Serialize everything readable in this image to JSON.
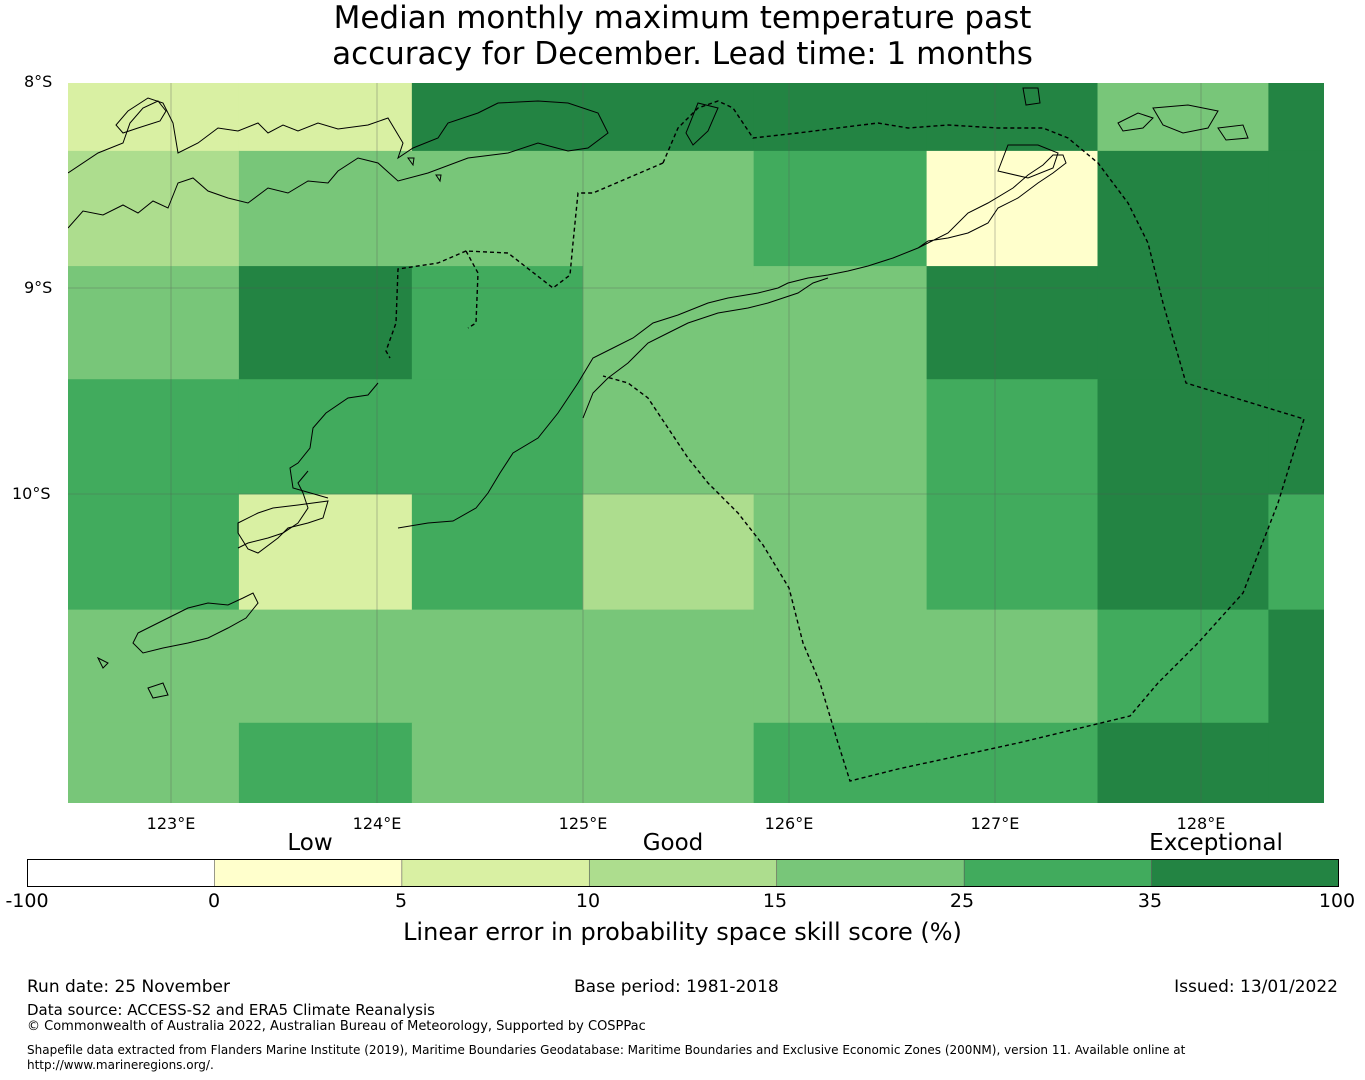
{
  "title": {
    "line1": "Median monthly maximum temperature past",
    "line2": "accuracy for December. Lead time: 1 months"
  },
  "map": {
    "lat_labels": [
      "8°S",
      "9°S",
      "10°S"
    ],
    "lon_labels": [
      "123°E",
      "124°E",
      "125°E",
      "126°E",
      "127°E",
      "128°E"
    ],
    "lon_range": [
      122.5,
      128.6
    ],
    "lat_range": [
      -8.0,
      -11.5
    ],
    "cell_lon_edges": [
      122.5,
      123.33,
      124.17,
      125.0,
      125.83,
      126.67,
      127.5,
      128.33,
      128.6
    ],
    "cell_lat_edges": [
      -8.0,
      -8.33,
      -8.89,
      -9.44,
      -10.0,
      -10.56,
      -11.11,
      -11.5
    ],
    "score_grid": [
      [
        7,
        7,
        40,
        40,
        40,
        40,
        20,
        40
      ],
      [
        12,
        20,
        20,
        20,
        30,
        2,
        40,
        40
      ],
      [
        20,
        40,
        30,
        20,
        20,
        40,
        40,
        40
      ],
      [
        30,
        30,
        30,
        20,
        20,
        30,
        40,
        40
      ],
      [
        30,
        7,
        30,
        12,
        20,
        30,
        40,
        30
      ],
      [
        20,
        20,
        20,
        20,
        20,
        20,
        30,
        40
      ],
      [
        20,
        30,
        20,
        20,
        30,
        30,
        40,
        40
      ]
    ]
  },
  "legend": {
    "categories": [
      "Low",
      "Good",
      "Exceptional"
    ],
    "ticks": [
      "-100",
      "0",
      "5",
      "10",
      "15",
      "25",
      "35",
      "100"
    ],
    "colors": [
      "#ffffff",
      "#ffffcc",
      "#d9f0a3",
      "#addd8e",
      "#78c679",
      "#41ab5d",
      "#238443"
    ],
    "label": "Linear error in probability space skill score (%)"
  },
  "footer": {
    "run_date": "Run date: 25 November",
    "base_period": "Base period: 1981-2018",
    "issued": "Issued: 13/01/2022",
    "data_source": "Data source: ACCESS-S2 and ERA5 Climate Reanalysis",
    "copyright": "© Commonwealth of Australia 2022, Australian Bureau of Meteorology, Supported by COSPPac",
    "shapefile_line1": "Shapefile data extracted from Flanders Marine Institute (2019), Maritime Boundaries Geodatabase: Maritime Boundaries and Exclusive Economic Zones (200NM), version 11. Available online at",
    "shapefile_line2": "http://www.marineregions.org/."
  }
}
